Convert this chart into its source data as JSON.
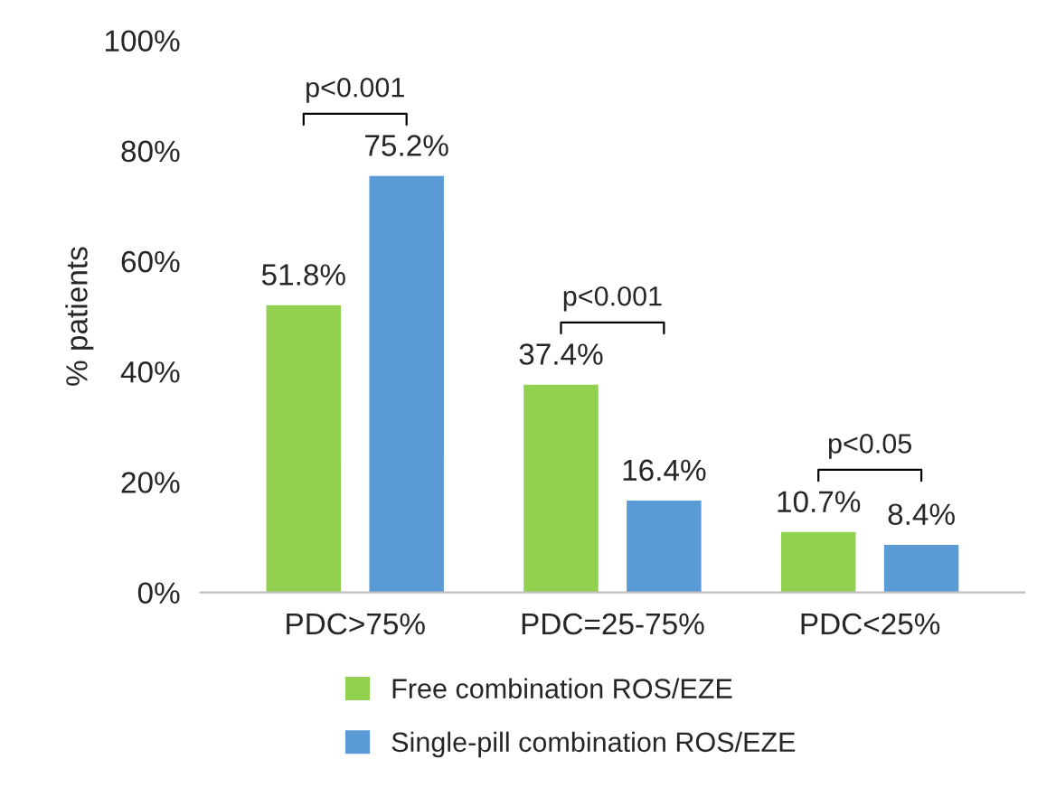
{
  "chart_data": {
    "type": "bar",
    "ylabel": "% patients",
    "categories": [
      "PDC>75%",
      "PDC=25-75%",
      "PDC<25%"
    ],
    "series": [
      {
        "name": "Free combination ROS/EZE",
        "color": "#92d050",
        "values": [
          51.8,
          37.4,
          10.7
        ],
        "value_labels": [
          "51.8%",
          "37.4%",
          "10.7%"
        ]
      },
      {
        "name": "Single-pill combination ROS/EZE",
        "color": "#5b9bd5",
        "values": [
          75.2,
          16.4,
          8.4
        ],
        "value_labels": [
          "75.2%",
          "16.4%",
          "8.4%"
        ]
      }
    ],
    "ylim": [
      0,
      100
    ],
    "yticks": [
      {
        "value": 0,
        "label": "0%"
      },
      {
        "value": 20,
        "label": "20%"
      },
      {
        "value": 40,
        "label": "40%"
      },
      {
        "value": 60,
        "label": "60%"
      },
      {
        "value": 80,
        "label": "80%"
      },
      {
        "value": 100,
        "label": "100%"
      }
    ],
    "annotations": [
      "p<0.001",
      "p<0.001",
      "p<0.05"
    ],
    "grid": false,
    "legend": "bottom"
  }
}
